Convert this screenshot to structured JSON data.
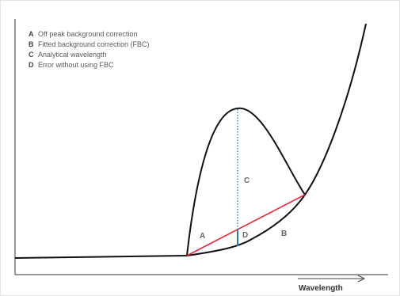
{
  "legend": {
    "items": [
      {
        "key": "A",
        "text": "Off peak background correction"
      },
      {
        "key": "B",
        "text": "Fitted background correction (FBC)"
      },
      {
        "key": "C",
        "text": "Analytical wavelength"
      },
      {
        "key": "D",
        "text": "Error without using FBC"
      }
    ]
  },
  "labels": {
    "a": "A",
    "b": "B",
    "c": "C",
    "d": "D"
  },
  "x_axis": {
    "label": "Wavelength"
  },
  "colors": {
    "curve": "#111111",
    "off_peak_line": "#e8293a",
    "analytical_line": "#2a7ab8",
    "error_segment": "#2a7ab8",
    "axis": "#333333"
  }
}
